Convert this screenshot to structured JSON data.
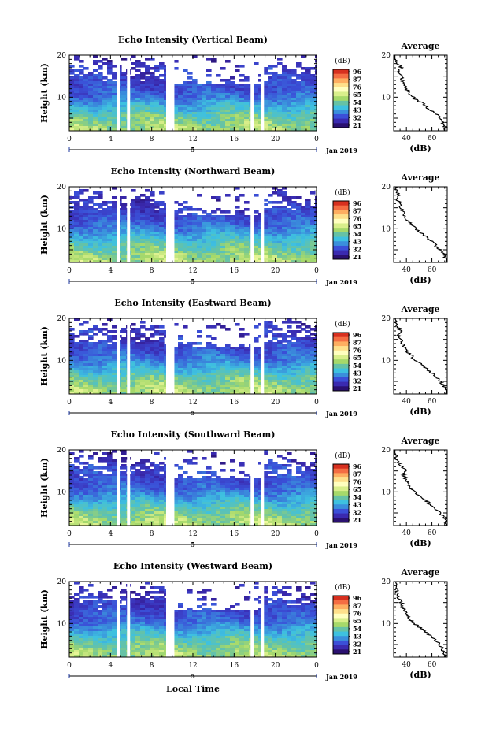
{
  "chart_data": {
    "type": "heatmap",
    "panels": [
      {
        "title": "Echo Intensity (Vertical Beam)",
        "avg_title": "Average",
        "avg_xticks": [
          40,
          60
        ],
        "avg_profile": [
          [
            2,
            71
          ],
          [
            3,
            70
          ],
          [
            4,
            68
          ],
          [
            5,
            66
          ],
          [
            6,
            63
          ],
          [
            7,
            58
          ],
          [
            8,
            55
          ],
          [
            9,
            50
          ],
          [
            10,
            45
          ],
          [
            11,
            42
          ],
          [
            12,
            40
          ],
          [
            13,
            39
          ],
          [
            14,
            37
          ],
          [
            15,
            36
          ],
          [
            16,
            34
          ],
          [
            17,
            36
          ],
          [
            18,
            33
          ],
          [
            19,
            31
          ],
          [
            20,
            29
          ]
        ]
      },
      {
        "title": "Echo Intensity (Northward Beam)",
        "avg_title": "Average",
        "avg_xticks": [
          40,
          60
        ],
        "avg_profile": [
          [
            2,
            72
          ],
          [
            3,
            71
          ],
          [
            4,
            69
          ],
          [
            5,
            66
          ],
          [
            6,
            63
          ],
          [
            7,
            60
          ],
          [
            8,
            56
          ],
          [
            9,
            52
          ],
          [
            10,
            47
          ],
          [
            11,
            44
          ],
          [
            12,
            41
          ],
          [
            13,
            39
          ],
          [
            14,
            37
          ],
          [
            15,
            36
          ],
          [
            16,
            35
          ],
          [
            17,
            33
          ],
          [
            18,
            34
          ],
          [
            19,
            32
          ],
          [
            20,
            31
          ]
        ]
      },
      {
        "title": "Echo Intensity (Eastward Beam)",
        "avg_title": "Average",
        "avg_xticks": [
          40,
          60
        ],
        "avg_profile": [
          [
            2,
            72
          ],
          [
            3,
            71
          ],
          [
            4,
            69
          ],
          [
            5,
            67
          ],
          [
            6,
            64
          ],
          [
            7,
            60
          ],
          [
            8,
            56
          ],
          [
            9,
            52
          ],
          [
            10,
            47
          ],
          [
            11,
            44
          ],
          [
            12,
            41
          ],
          [
            13,
            39
          ],
          [
            14,
            37
          ],
          [
            15,
            36
          ],
          [
            16,
            34
          ],
          [
            17,
            36
          ],
          [
            18,
            33
          ],
          [
            19,
            32
          ],
          [
            20,
            31
          ]
        ]
      },
      {
        "title": "Echo Intensity (Southward Beam)",
        "avg_title": "Average",
        "avg_xticks": [
          40,
          60
        ],
        "avg_profile": [
          [
            2,
            72
          ],
          [
            3,
            71
          ],
          [
            4,
            69
          ],
          [
            5,
            66
          ],
          [
            6,
            63
          ],
          [
            7,
            59
          ],
          [
            8,
            55
          ],
          [
            9,
            51
          ],
          [
            10,
            46
          ],
          [
            11,
            43
          ],
          [
            12,
            41
          ],
          [
            13,
            39
          ],
          [
            14,
            38
          ],
          [
            15,
            39
          ],
          [
            16,
            37
          ],
          [
            17,
            34
          ],
          [
            18,
            32
          ],
          [
            19,
            31
          ],
          [
            20,
            30
          ]
        ]
      },
      {
        "title": "Echo Intensity (Westward Beam)",
        "avg_title": "Average",
        "avg_xticks": [
          40,
          60
        ],
        "avg_profile": [
          [
            2,
            71
          ],
          [
            3,
            70
          ],
          [
            4,
            68
          ],
          [
            5,
            66
          ],
          [
            6,
            63
          ],
          [
            7,
            59
          ],
          [
            8,
            55
          ],
          [
            9,
            51
          ],
          [
            10,
            46
          ],
          [
            11,
            43
          ],
          [
            12,
            41
          ],
          [
            13,
            39
          ],
          [
            14,
            37
          ],
          [
            15,
            36
          ],
          [
            16,
            34
          ],
          [
            17,
            33
          ],
          [
            18,
            32
          ],
          [
            19,
            33
          ],
          [
            20,
            31
          ]
        ]
      }
    ],
    "ylabel": "Height (km)",
    "yticks": [
      10,
      20
    ],
    "ylim": [
      2,
      20
    ],
    "xticks": [
      "0",
      "4",
      "8",
      "12",
      "16",
      "20",
      "0"
    ],
    "xlim": [
      0,
      24
    ],
    "date_label": "Jan 2019",
    "day_marker": "5",
    "xlabel": "Local Time",
    "avg_xlabel": "(dB)",
    "avg_xlim": [
      30,
      72
    ],
    "colorbar": {
      "unit": "(dB)",
      "labels": [
        "96",
        "87",
        "76",
        "65",
        "54",
        "43",
        "32",
        "21"
      ],
      "colors": [
        "#d7301f",
        "#f46d43",
        "#fdae61",
        "#fee08b",
        "#ffffbf",
        "#d9ef8b",
        "#a6d96a",
        "#66c2a5",
        "#3ec1e0",
        "#3a8fdc",
        "#3b4fd8",
        "#3a2ab0",
        "#2a1070"
      ]
    },
    "data_gaps_hours": [
      [
        4.6,
        4.9
      ],
      [
        5.6,
        5.9
      ],
      [
        9.4,
        10.2
      ],
      [
        17.6,
        17.9
      ],
      [
        18.6,
        18.9
      ]
    ]
  }
}
